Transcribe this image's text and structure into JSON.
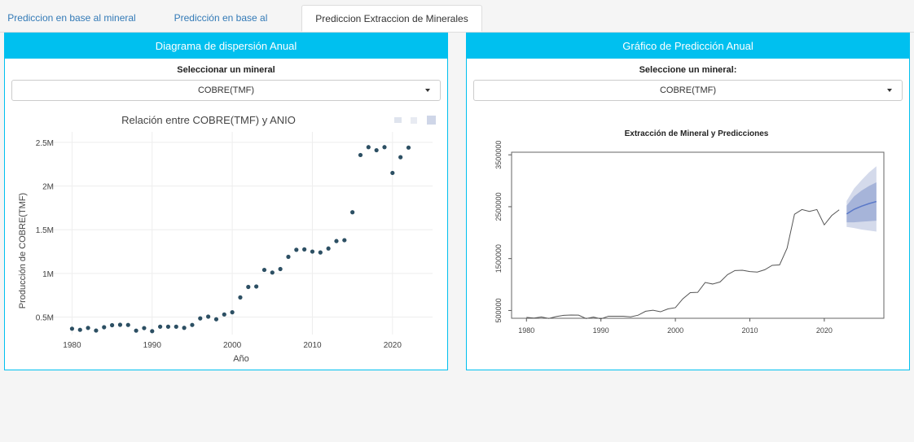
{
  "tabs": [
    {
      "label": "Prediccion en base al mineral"
    },
    {
      "label": "Predicción en base al departamento"
    },
    {
      "label": "Prediccion Extraccion de Minerales Anual"
    }
  ],
  "left_panel": {
    "title": "Diagrama de dispersión Anual",
    "select_label": "Seleccionar un mineral",
    "select_value": "COBRE(TMF)"
  },
  "right_panel": {
    "title": "Gráfico de Predicción Anual",
    "select_label": "Seleccione un mineral:",
    "select_value": "COBRE(TMF)"
  },
  "chart_data": [
    {
      "type": "scatter",
      "title": "Relación entre COBRE(TMF) y ANIO",
      "xlabel": "Año",
      "ylabel": "Producción de COBRE(TMF)",
      "x_ticks": [
        1980,
        1990,
        2000,
        2010,
        2020
      ],
      "y_ticks": [
        {
          "value": 500000,
          "label": "0.5M"
        },
        {
          "value": 1000000,
          "label": "1M"
        },
        {
          "value": 1500000,
          "label": "1.5M"
        },
        {
          "value": 2000000,
          "label": "2M"
        },
        {
          "value": 2500000,
          "label": "2.5M"
        }
      ],
      "xlim": [
        1976.5,
        2025
      ],
      "ylim": [
        300000,
        2620000
      ],
      "marker_color": "#2c4f63",
      "x": [
        1980,
        1981,
        1982,
        1983,
        1984,
        1985,
        1986,
        1987,
        1988,
        1989,
        1990,
        1991,
        1992,
        1993,
        1994,
        1995,
        1996,
        1997,
        1998,
        1999,
        2000,
        2001,
        2002,
        2003,
        2004,
        2005,
        2006,
        2007,
        2008,
        2009,
        2010,
        2011,
        2012,
        2013,
        2014,
        2015,
        2016,
        2017,
        2018,
        2019,
        2020,
        2021,
        2022
      ],
      "y": [
        367000,
        354000,
        376000,
        346000,
        384000,
        407000,
        412000,
        410000,
        345000,
        374000,
        339000,
        390000,
        390000,
        390000,
        377000,
        410000,
        485000,
        505000,
        475000,
        530000,
        555000,
        725000,
        845000,
        850000,
        1040000,
        1010000,
        1050000,
        1190000,
        1270000,
        1275000,
        1250000,
        1240000,
        1285000,
        1370000,
        1380000,
        1700000,
        2355000,
        2445000,
        2410000,
        2445000,
        2150000,
        2330000,
        2440000
      ]
    },
    {
      "type": "line",
      "title": "Extracción de Mineral y Predicciones",
      "x_ticks": [
        1980,
        1990,
        2000,
        2010,
        2020
      ],
      "y_ticks": [
        500000,
        1500000,
        2500000,
        3500000
      ],
      "xlim": [
        1978,
        2028
      ],
      "ylim": [
        350000,
        3550000
      ],
      "line_color": "#555555",
      "forecast_color": "#6f86c4",
      "interval_color": "#b7c1dd",
      "history": {
        "x": [
          1980,
          1981,
          1982,
          1983,
          1984,
          1985,
          1986,
          1987,
          1988,
          1989,
          1990,
          1991,
          1992,
          1993,
          1994,
          1995,
          1996,
          1997,
          1998,
          1999,
          2000,
          2001,
          2002,
          2003,
          2004,
          2005,
          2006,
          2007,
          2008,
          2009,
          2010,
          2011,
          2012,
          2013,
          2014,
          2015,
          2016,
          2017,
          2018,
          2019,
          2020,
          2021,
          2022
        ],
        "y": [
          367000,
          354000,
          376000,
          346000,
          384000,
          407000,
          412000,
          410000,
          345000,
          374000,
          339000,
          390000,
          390000,
          390000,
          377000,
          410000,
          485000,
          505000,
          475000,
          530000,
          555000,
          725000,
          845000,
          850000,
          1040000,
          1010000,
          1050000,
          1190000,
          1270000,
          1275000,
          1250000,
          1240000,
          1285000,
          1370000,
          1380000,
          1700000,
          2355000,
          2445000,
          2410000,
          2445000,
          2150000,
          2330000,
          2440000
        ]
      },
      "forecast": {
        "x": [
          2023,
          2024,
          2025,
          2026,
          2027
        ],
        "mean": [
          2360000,
          2450000,
          2510000,
          2560000,
          2600000
        ],
        "lo80": [
          2200000,
          2200000,
          2210000,
          2220000,
          2230000
        ],
        "hi80": [
          2520000,
          2700000,
          2810000,
          2900000,
          2970000
        ],
        "lo95": [
          2110000,
          2090000,
          2060000,
          2040000,
          2020000
        ],
        "hi95": [
          2610000,
          2850000,
          3010000,
          3160000,
          3280000
        ]
      }
    }
  ]
}
